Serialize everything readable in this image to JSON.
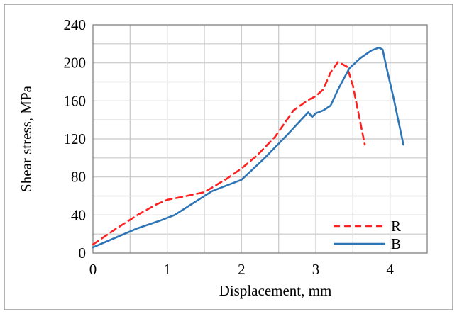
{
  "chart_data": {
    "type": "line",
    "title": "",
    "xlabel": "Displacement, mm",
    "ylabel": "Shear stress, MPa",
    "xlim": [
      0,
      4.5
    ],
    "ylim": [
      0,
      240
    ],
    "x_ticks": [
      0,
      1,
      2,
      3,
      4
    ],
    "y_ticks": [
      0,
      40,
      80,
      120,
      160,
      200,
      240
    ],
    "x_tick_labels": [
      "0",
      "1",
      "2",
      "3",
      "4"
    ],
    "y_tick_labels": [
      "0",
      "40",
      "80",
      "120",
      "160",
      "200",
      "240"
    ],
    "grid": true,
    "legend_position": "bottom-right",
    "series": [
      {
        "name": "R",
        "color": "#ff2020",
        "style": "dashed",
        "x": [
          0,
          0.3,
          0.6,
          0.85,
          1.0,
          1.2,
          1.5,
          1.8,
          2.0,
          2.2,
          2.45,
          2.7,
          2.9,
          3.0,
          3.1,
          3.2,
          3.3,
          3.42,
          3.5,
          3.58,
          3.66
        ],
        "y": [
          9,
          25,
          40,
          51,
          56,
          59,
          64,
          78,
          89,
          102,
          122,
          150,
          161,
          165,
          172,
          190,
          201,
          196,
          176,
          145,
          114
        ]
      },
      {
        "name": "B",
        "color": "#2e75b6",
        "style": "solid",
        "x": [
          0,
          0.3,
          0.6,
          0.9,
          1.1,
          1.3,
          1.6,
          1.8,
          2.0,
          2.3,
          2.6,
          2.85,
          2.9,
          2.95,
          3.0,
          3.1,
          3.2,
          3.3,
          3.45,
          3.6,
          3.75,
          3.85,
          3.9,
          3.95,
          4.05,
          4.18
        ],
        "y": [
          6,
          16,
          26,
          34,
          40,
          50,
          65,
          71,
          77,
          99,
          123,
          144,
          148,
          143,
          147,
          150,
          155,
          172,
          194,
          205,
          213,
          216,
          214,
          196,
          162,
          114
        ]
      }
    ]
  }
}
